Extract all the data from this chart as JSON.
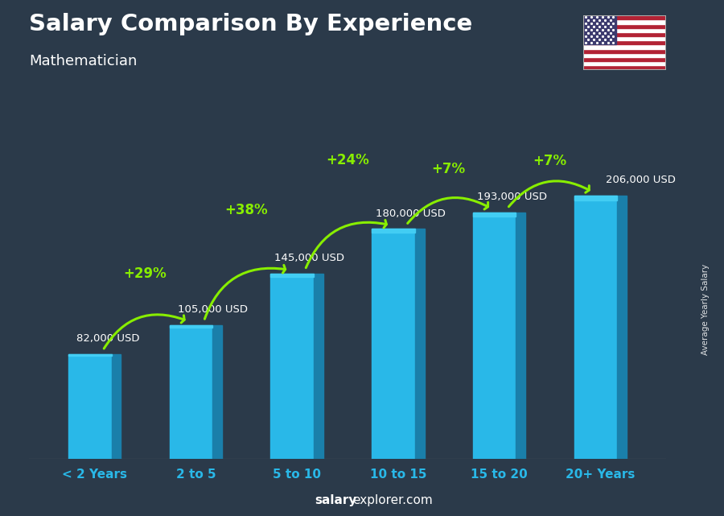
{
  "title": "Salary Comparison By Experience",
  "subtitle": "Mathematician",
  "categories": [
    "< 2 Years",
    "2 to 5",
    "5 to 10",
    "10 to 15",
    "15 to 20",
    "20+ Years"
  ],
  "values": [
    82000,
    105000,
    145000,
    180000,
    193000,
    206000
  ],
  "labels": [
    "82,000 USD",
    "105,000 USD",
    "145,000 USD",
    "180,000 USD",
    "193,000 USD",
    "206,000 USD"
  ],
  "pct_changes": [
    "+29%",
    "+38%",
    "+24%",
    "+7%",
    "+7%"
  ],
  "bar_color_main": "#29B8E8",
  "bar_color_dark": "#1A7FAA",
  "bar_color_light": "#45D0F5",
  "pct_color": "#88EE00",
  "label_color": "#FFFFFF",
  "title_color": "#FFFFFF",
  "subtitle_color": "#FFFFFF",
  "category_color": "#29B8E8",
  "bg_color": "#2B3A4A",
  "ylabel": "Average Yearly Salary",
  "footer_bold": "salary",
  "footer_rest": "explorer.com",
  "ylim": [
    0,
    250000
  ],
  "label_offsets_x": [
    -0.18,
    -0.18,
    -0.22,
    -0.22,
    -0.22,
    0.05
  ],
  "label_offsets_y": [
    8000,
    8000,
    8000,
    8000,
    8000,
    8000
  ],
  "arc_lifts": [
    38000,
    48000,
    52000,
    32000,
    25000
  ],
  "pct_offsets_x": [
    0.0,
    0.0,
    0.0,
    0.0,
    0.0
  ],
  "pct_offsets_y": [
    2000,
    2000,
    2000,
    2000,
    2000
  ]
}
